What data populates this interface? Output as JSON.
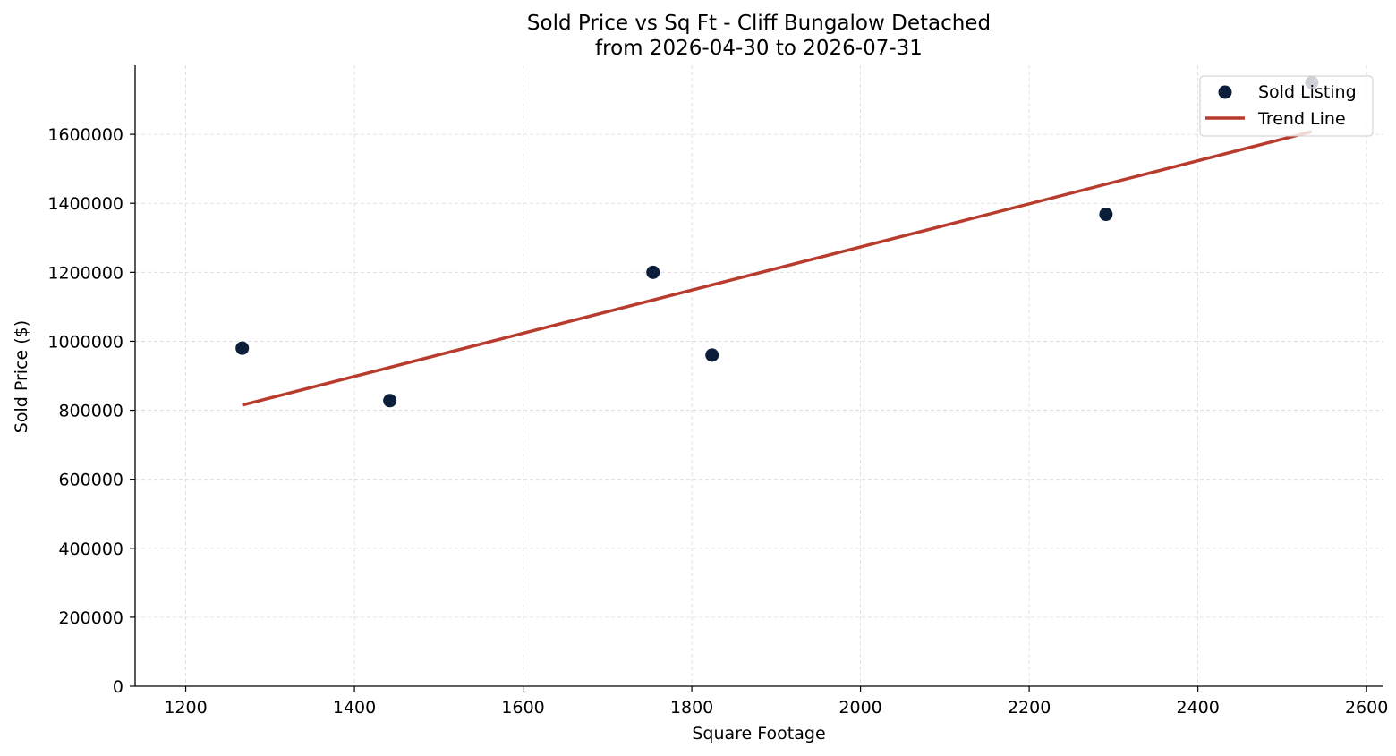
{
  "chart_data": {
    "type": "scatter",
    "title": "Sold Price vs Sq Ft - Cliff Bungalow Detached",
    "subtitle": "from 2026-04-30 to 2026-07-31",
    "xlabel": "Square Footage",
    "ylabel": "Sold Price ($)",
    "xlim": [
      1140,
      2620
    ],
    "ylim": [
      0,
      1800000
    ],
    "x_ticks": [
      1200,
      1400,
      1600,
      1800,
      2000,
      2200,
      2400,
      2600
    ],
    "y_ticks": [
      0,
      200000,
      400000,
      600000,
      800000,
      1000000,
      1200000,
      1400000,
      1600000
    ],
    "grid": true,
    "legend_position": "top-right",
    "series": [
      {
        "name": "Sold Listing",
        "kind": "scatter",
        "color": "#0b1f3a",
        "points": [
          {
            "x": 1267,
            "y": 980000
          },
          {
            "x": 1442,
            "y": 828000
          },
          {
            "x": 1754,
            "y": 1200000
          },
          {
            "x": 1824,
            "y": 960000
          },
          {
            "x": 2291,
            "y": 1368000
          },
          {
            "x": 2535,
            "y": 1750000
          }
        ]
      },
      {
        "name": "Trend Line",
        "kind": "line",
        "color": "#b83c2e",
        "points": [
          {
            "x": 1267,
            "y": 815000
          },
          {
            "x": 2535,
            "y": 1608000
          }
        ]
      }
    ]
  }
}
